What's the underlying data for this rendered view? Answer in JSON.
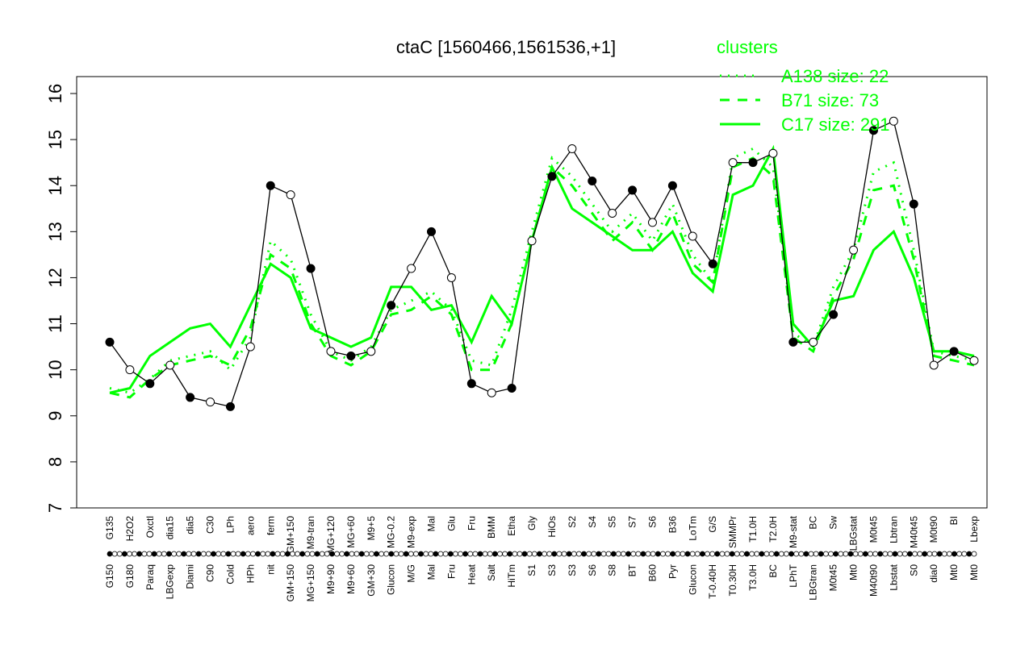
{
  "chart_data": {
    "type": "line",
    "title": "ctaC [1560466,1561536,+1]",
    "xlabel": "",
    "ylabel": "",
    "ylim": [
      7,
      16
    ],
    "yticks": [
      7,
      8,
      9,
      10,
      11,
      12,
      13,
      14,
      15,
      16
    ],
    "grid": false,
    "legend": {
      "title": "clusters",
      "placement": "top-right",
      "entries": [
        "A138 size: 22",
        "B71 size: 73",
        "C17 size: 291"
      ]
    },
    "colors": {
      "accent": "#00ff00",
      "points": "#000000",
      "background": "#ffffff"
    },
    "top_labels": [
      "G135",
      "H2O2",
      "Oxctl",
      "dia15",
      "dia5",
      "C30",
      "LPh",
      "aero",
      "ferm",
      "GM+150",
      "M9-tran",
      "MG+120",
      "MG+60",
      "M9+5",
      "MG-0.2",
      "M9-exp",
      "Mal",
      "Glu",
      "Fru",
      "BMM",
      "Etha",
      "Gly",
      "HiOs",
      "S2",
      "S4",
      "S5",
      "S7",
      "S6",
      "B36",
      "LoTm",
      "G/S",
      "SMMPr",
      "T1.0H",
      "T2.0H",
      "M9-stat",
      "BC",
      "Sw",
      "LBGstat",
      "M0t45",
      "Lbtran",
      "M40t45",
      "M0t90",
      "BI",
      "Lbexp"
    ],
    "bottom_labels": [
      "G150",
      "G180",
      "Paraq",
      "LBGexp",
      "Diami",
      "C90",
      "Cold",
      "HPh",
      "nit",
      "GM+150",
      "MG+150",
      "M9+90",
      "M9+60",
      "GM+30",
      "Glucon",
      "M/G",
      "Mal",
      "Fru",
      "Heat",
      "Salt",
      "HiTm",
      "S1",
      "S3",
      "S3",
      "S6",
      "S8",
      "BT",
      "B60",
      "Pyr",
      "Glucon",
      "T-0.40H",
      "T0.30H",
      "T3.0H",
      "BC",
      "LPhT",
      "LBGtran",
      "M0t45",
      "Mt0",
      "M40t90",
      "Lbstat",
      "S0",
      "dia0",
      "Mt0",
      "Mt0"
    ],
    "x": [
      1,
      2,
      3,
      4,
      5,
      6,
      7,
      8,
      9,
      10,
      11,
      12,
      13,
      14,
      15,
      16,
      17,
      18,
      19,
      20,
      21,
      22,
      23,
      24,
      25,
      26,
      27,
      28,
      29,
      30,
      31,
      32,
      33,
      34,
      35,
      36,
      37,
      38,
      39,
      40,
      41,
      42,
      43,
      44
    ],
    "series": [
      {
        "name": "",
        "style": "points",
        "values": [
          10.6,
          10.0,
          9.7,
          10.1,
          9.4,
          9.3,
          9.2,
          10.5,
          14.0,
          13.8,
          12.2,
          10.4,
          10.3,
          10.4,
          11.4,
          12.2,
          13.0,
          12.0,
          9.7,
          9.5,
          9.6,
          12.8,
          14.2,
          14.8,
          14.1,
          13.4,
          13.9,
          13.2,
          14.0,
          12.9,
          12.3,
          14.5,
          14.5,
          14.7,
          10.6,
          10.6,
          11.2,
          12.6,
          15.2,
          15.4,
          13.6,
          10.1,
          10.4,
          10.2
        ]
      },
      {
        "name": "A138",
        "style": "dotted",
        "values": [
          9.6,
          9.5,
          9.8,
          10.2,
          10.3,
          10.4,
          10.0,
          10.7,
          12.8,
          12.4,
          11.2,
          10.4,
          10.2,
          10.5,
          11.3,
          11.5,
          11.7,
          11.3,
          10.2,
          10.1,
          11.3,
          13.0,
          14.6,
          14.2,
          13.6,
          13.0,
          13.4,
          12.8,
          13.6,
          12.5,
          11.9,
          14.6,
          14.8,
          14.4,
          10.8,
          10.5,
          11.8,
          12.6,
          14.3,
          14.5,
          12.6,
          10.4,
          10.3,
          10.2
        ]
      },
      {
        "name": "B71",
        "style": "dashed",
        "values": [
          9.5,
          9.4,
          9.8,
          10.1,
          10.2,
          10.3,
          10.1,
          10.9,
          12.5,
          12.2,
          11.0,
          10.3,
          10.1,
          10.4,
          11.2,
          11.3,
          11.6,
          11.2,
          10.0,
          10.0,
          11.0,
          12.8,
          14.4,
          14.0,
          13.4,
          12.8,
          13.2,
          12.6,
          13.4,
          12.3,
          11.9,
          14.4,
          14.6,
          14.2,
          10.7,
          10.4,
          11.6,
          12.4,
          13.9,
          14.0,
          12.4,
          10.3,
          10.2,
          10.1
        ]
      },
      {
        "name": "C17",
        "style": "solid",
        "values": [
          9.5,
          9.6,
          10.3,
          10.6,
          10.9,
          11.0,
          10.5,
          11.4,
          12.3,
          12.0,
          10.9,
          10.7,
          10.5,
          10.7,
          11.8,
          11.8,
          11.3,
          11.4,
          10.6,
          11.6,
          11.0,
          12.8,
          14.4,
          13.5,
          13.2,
          12.9,
          12.6,
          12.6,
          13.0,
          12.1,
          11.7,
          13.8,
          14.0,
          14.8,
          11.0,
          10.5,
          11.5,
          11.6,
          12.6,
          13.0,
          12.0,
          10.4,
          10.4,
          10.3
        ]
      }
    ]
  }
}
